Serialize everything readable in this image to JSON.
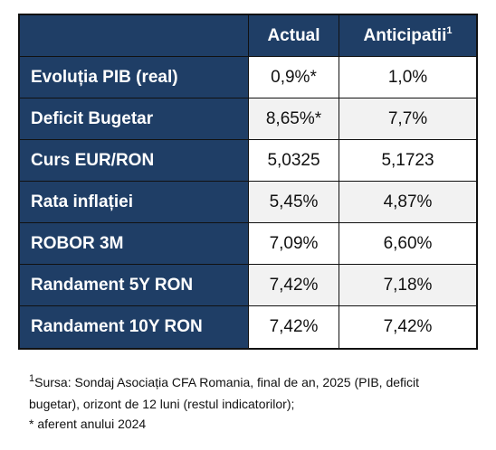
{
  "table": {
    "header": {
      "col1": "Actual",
      "col2": "Anticipatii",
      "col2_sup": "1"
    },
    "rows": [
      {
        "label": "Evoluția PIB (real)",
        "actual": "0,9%*",
        "anticipatii": "1,0%"
      },
      {
        "label": "Deficit Bugetar",
        "actual": "8,65%*",
        "anticipatii": "7,7%"
      },
      {
        "label": "Curs EUR/RON",
        "actual": "5,0325",
        "anticipatii": "5,1723"
      },
      {
        "label": "Rata inflației",
        "actual": "5,45%",
        "anticipatii": "4,87%"
      },
      {
        "label": "ROBOR 3M",
        "actual": "7,09%",
        "anticipatii": "6,60%"
      },
      {
        "label": "Randament 5Y RON",
        "actual": "7,42%",
        "anticipatii": "7,18%"
      },
      {
        "label": "Randament 10Y RON",
        "actual": "7,42%",
        "anticipatii": "7,42%"
      }
    ],
    "colors": {
      "header_bg": "#1F3E66",
      "row_alt": "#F2F2F2",
      "border": "#111111"
    }
  },
  "footnotes": {
    "sup": "1",
    "line1": "Sursa: Sondaj Asociația CFA Romania, final de an, 2025 (PIB, deficit bugetar), orizont de 12 luni (restul indicatorilor);",
    "line2": "* aferent anului 2024"
  }
}
